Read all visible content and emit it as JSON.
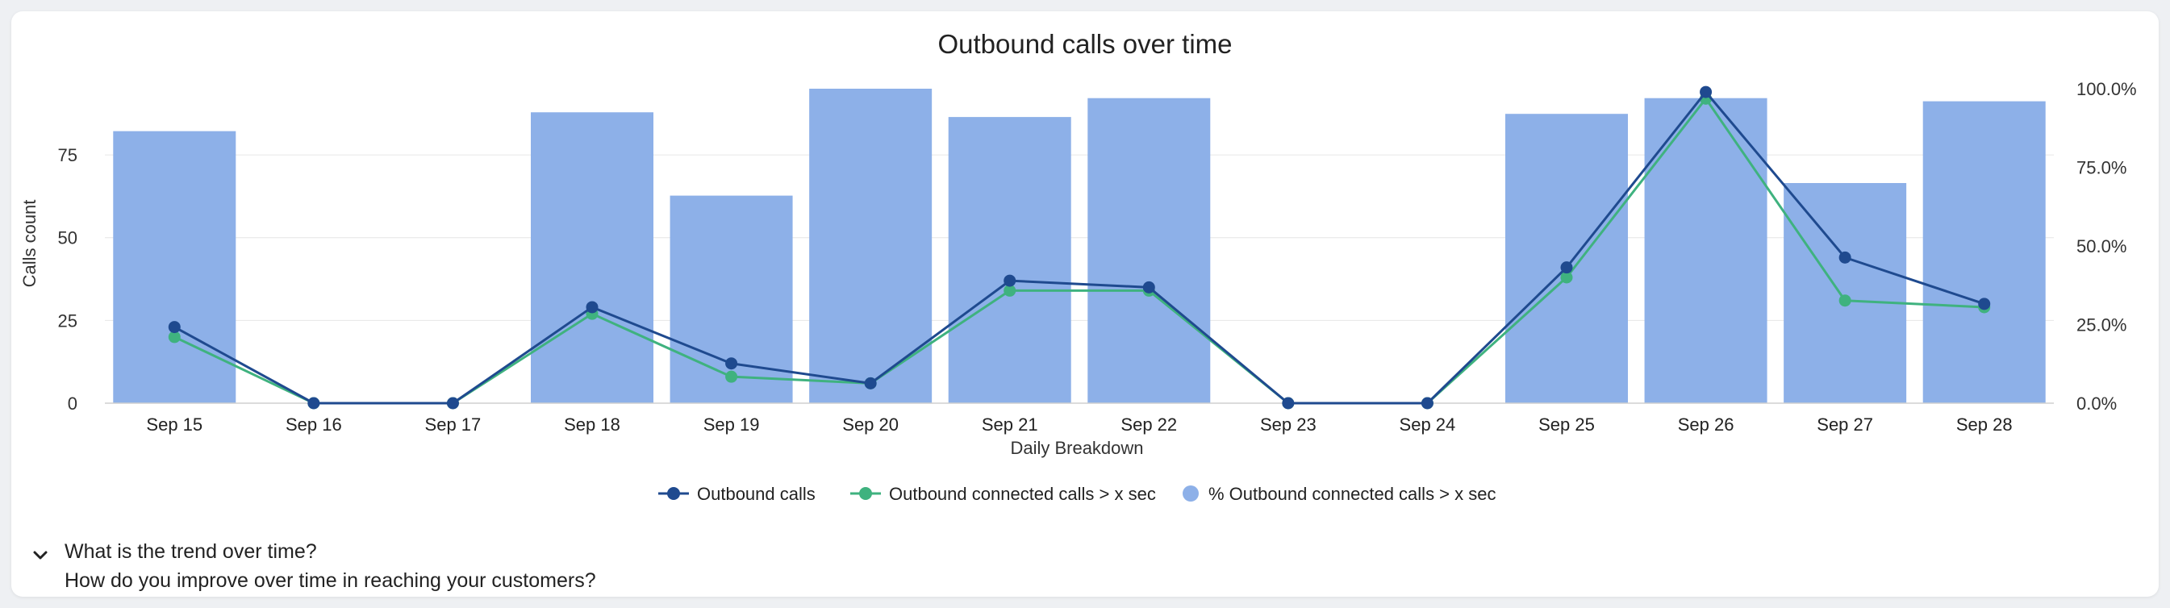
{
  "chart_data": {
    "type": "bar+line",
    "title": "Outbound calls over time",
    "xlabel": "Daily Breakdown",
    "ylabel": "Calls count",
    "ylim": [
      0,
      95
    ],
    "y_ticks": [
      "0",
      "25",
      "50",
      "75"
    ],
    "y_tick_values": [
      0,
      25,
      50,
      75
    ],
    "y2_ticks": [
      "0.0%",
      "25.0%",
      "50.0%",
      "75.0%",
      "100.0%"
    ],
    "y2_tick_values": [
      0,
      25,
      50,
      75,
      100
    ],
    "y2lim": [
      0,
      100
    ],
    "grid": true,
    "legend_position": "bottom",
    "categories": [
      "Sep 15",
      "Sep 16",
      "Sep 17",
      "Sep 18",
      "Sep 19",
      "Sep 20",
      "Sep 21",
      "Sep 22",
      "Sep 23",
      "Sep 24",
      "Sep 25",
      "Sep 26",
      "Sep 27",
      "Sep 28"
    ],
    "series": [
      {
        "name": "Outbound calls",
        "kind": "line",
        "axis": "left",
        "color": "#1f4a8f",
        "values": [
          23,
          0,
          0,
          29,
          12,
          6,
          37,
          35,
          0,
          0,
          41,
          94,
          44,
          30
        ]
      },
      {
        "name": "Outbound connected calls > x sec",
        "kind": "line",
        "axis": "left",
        "color": "#3fb27f",
        "values": [
          20,
          0,
          0,
          27,
          8,
          6,
          34,
          34,
          0,
          0,
          38,
          92,
          31,
          29
        ]
      },
      {
        "name": "% Outbound connected calls > x sec",
        "kind": "bar",
        "axis": "right",
        "color": "#8db0e8",
        "values": [
          86.5,
          null,
          null,
          92.5,
          66,
          100,
          91,
          97,
          null,
          null,
          92,
          97,
          70,
          96
        ]
      }
    ]
  },
  "faq": {
    "question": "What is the trend over time?",
    "subtext": "How do you improve over time in reaching your customers?"
  },
  "icons": {
    "toggle": "chevron-down-icon"
  }
}
